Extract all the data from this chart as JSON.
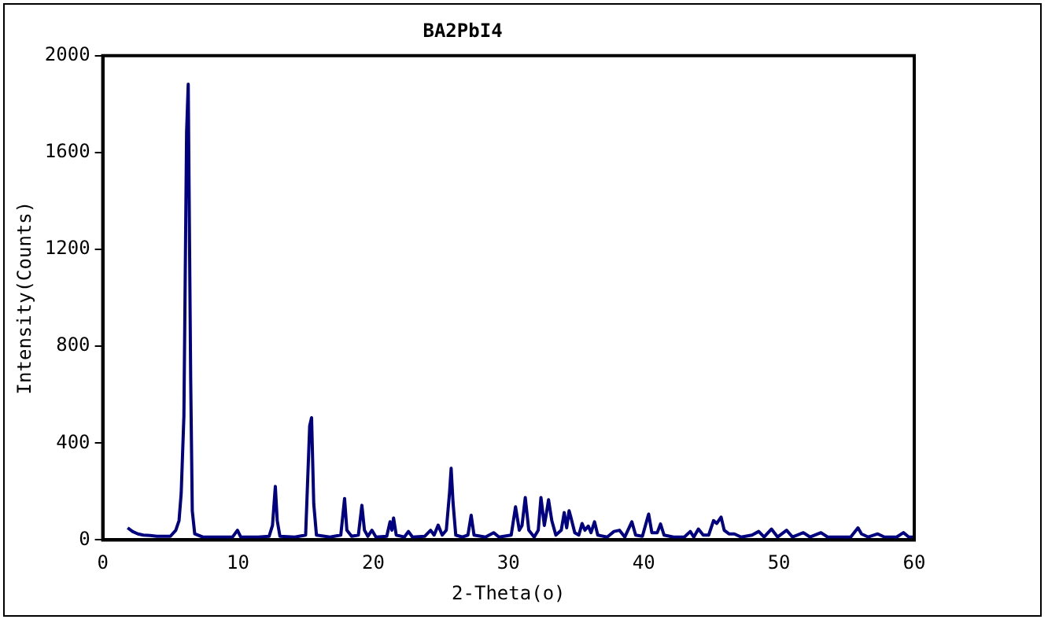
{
  "chart_data": {
    "type": "line",
    "title": "BA2PbI4",
    "xlabel": "2-Theta(o)",
    "ylabel": "Intensity(Counts)",
    "x": [
      1.84,
      2.2,
      2.6,
      3.0,
      3.5,
      4.0,
      4.5,
      5.0,
      5.4,
      5.64,
      5.8,
      6.0,
      6.2,
      6.32,
      6.42,
      6.5,
      6.62,
      6.8,
      7.4,
      8.5,
      9.6,
      9.96,
      10.2,
      11.5,
      12.3,
      12.55,
      12.76,
      12.9,
      13.1,
      14.2,
      15.0,
      15.3,
      15.44,
      15.6,
      15.8,
      16.8,
      17.6,
      17.88,
      18.05,
      18.4,
      18.9,
      19.16,
      19.35,
      19.6,
      19.9,
      20.2,
      21.0,
      21.24,
      21.38,
      21.5,
      21.7,
      22.3,
      22.6,
      22.9,
      23.8,
      24.24,
      24.5,
      24.8,
      25.1,
      25.4,
      25.64,
      25.76,
      25.9,
      26.1,
      26.6,
      27.0,
      27.24,
      27.45,
      28.3,
      28.9,
      29.3,
      30.2,
      30.52,
      30.8,
      31.0,
      31.24,
      31.5,
      31.9,
      32.2,
      32.4,
      32.5,
      32.65,
      32.8,
      32.96,
      33.2,
      33.5,
      33.9,
      34.12,
      34.3,
      34.48,
      34.6,
      34.9,
      35.2,
      35.44,
      35.65,
      35.9,
      36.1,
      36.36,
      36.6,
      37.3,
      37.8,
      38.2,
      38.6,
      39.12,
      39.4,
      39.9,
      40.36,
      40.6,
      41.0,
      41.24,
      41.5,
      42.2,
      43.0,
      43.44,
      43.7,
      44.04,
      44.4,
      44.8,
      45.16,
      45.4,
      45.72,
      45.95,
      46.3,
      46.7,
      47.2,
      48.0,
      48.5,
      48.9,
      49.44,
      49.9,
      50.56,
      51.0,
      51.8,
      52.3,
      53.1,
      53.6,
      55.3,
      55.84,
      56.1,
      56.6,
      57.3,
      57.8,
      58.7,
      59.2,
      59.6,
      60
    ],
    "values": [
      50,
      35,
      25,
      20,
      18,
      15,
      15,
      15,
      40,
      80,
      193,
      512,
      1686,
      1882,
      1200,
      671,
      120,
      25,
      12,
      12,
      12,
      40,
      12,
      12,
      15,
      60,
      221,
      80,
      15,
      12,
      20,
      471,
      505,
      150,
      20,
      12,
      20,
      171,
      40,
      15,
      20,
      143,
      40,
      15,
      40,
      12,
      15,
      75,
      40,
      91,
      20,
      12,
      35,
      12,
      15,
      40,
      20,
      61,
      20,
      40,
      195,
      296,
      154,
      20,
      12,
      20,
      102,
      20,
      12,
      30,
      12,
      20,
      137,
      40,
      60,
      175,
      40,
      12,
      40,
      175,
      130,
      60,
      109,
      166,
      80,
      20,
      40,
      113,
      50,
      121,
      96,
      30,
      20,
      68,
      40,
      57,
      30,
      75,
      20,
      12,
      35,
      40,
      12,
      75,
      20,
      15,
      107,
      30,
      30,
      66,
      20,
      12,
      12,
      35,
      12,
      45,
      20,
      20,
      80,
      68,
      94,
      40,
      25,
      25,
      12,
      20,
      35,
      12,
      45,
      12,
      40,
      12,
      30,
      12,
      30,
      12,
      12,
      50,
      25,
      12,
      25,
      12,
      12,
      30,
      12,
      12
    ],
    "color": "#000080",
    "xlim": [
      0,
      60
    ],
    "xticks": [
      0,
      10,
      20,
      30,
      40,
      50,
      60
    ],
    "ylim": [
      0,
      2000
    ],
    "yticks": [
      0,
      400,
      800,
      1200,
      1600,
      2000
    ],
    "grid": false,
    "legend": false,
    "marker": "none",
    "line_style": "solid"
  }
}
